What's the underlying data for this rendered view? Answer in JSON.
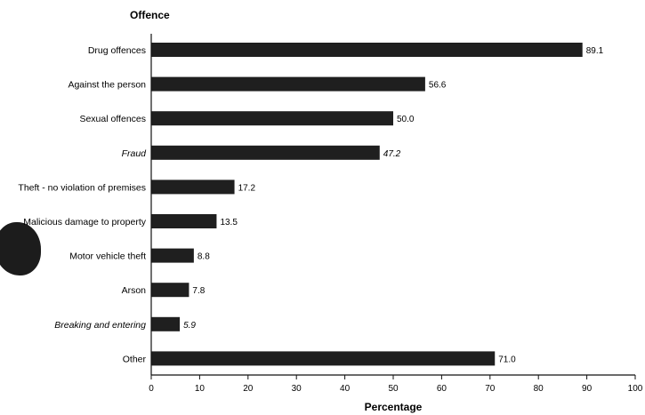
{
  "chart_data": {
    "type": "bar",
    "orientation": "horizontal",
    "y_title": "Offence",
    "xlabel": "Percentage",
    "xlim": [
      0,
      100
    ],
    "xticks": [
      0,
      10,
      20,
      30,
      40,
      50,
      60,
      70,
      80,
      90,
      100
    ],
    "grid": false,
    "bar_color": "#1f1f1f",
    "categories": [
      "Drug offences",
      "Against the person",
      "Sexual offences",
      "Fraud",
      "Theft - no violation of premises",
      "Malicious damage to property",
      "Motor vehicle theft",
      "Arson",
      "Breaking and entering",
      "Other"
    ],
    "italic_categories": [
      "Fraud",
      "Breaking and entering"
    ],
    "values": [
      89.1,
      56.6,
      50.0,
      47.2,
      17.2,
      13.5,
      8.8,
      7.8,
      5.9,
      71.0
    ],
    "value_labels": [
      "89.1",
      "56.6",
      "50.0",
      "47.2",
      "17.2",
      "13.5",
      "8.8",
      "7.8",
      "5.9",
      "71.0"
    ]
  }
}
